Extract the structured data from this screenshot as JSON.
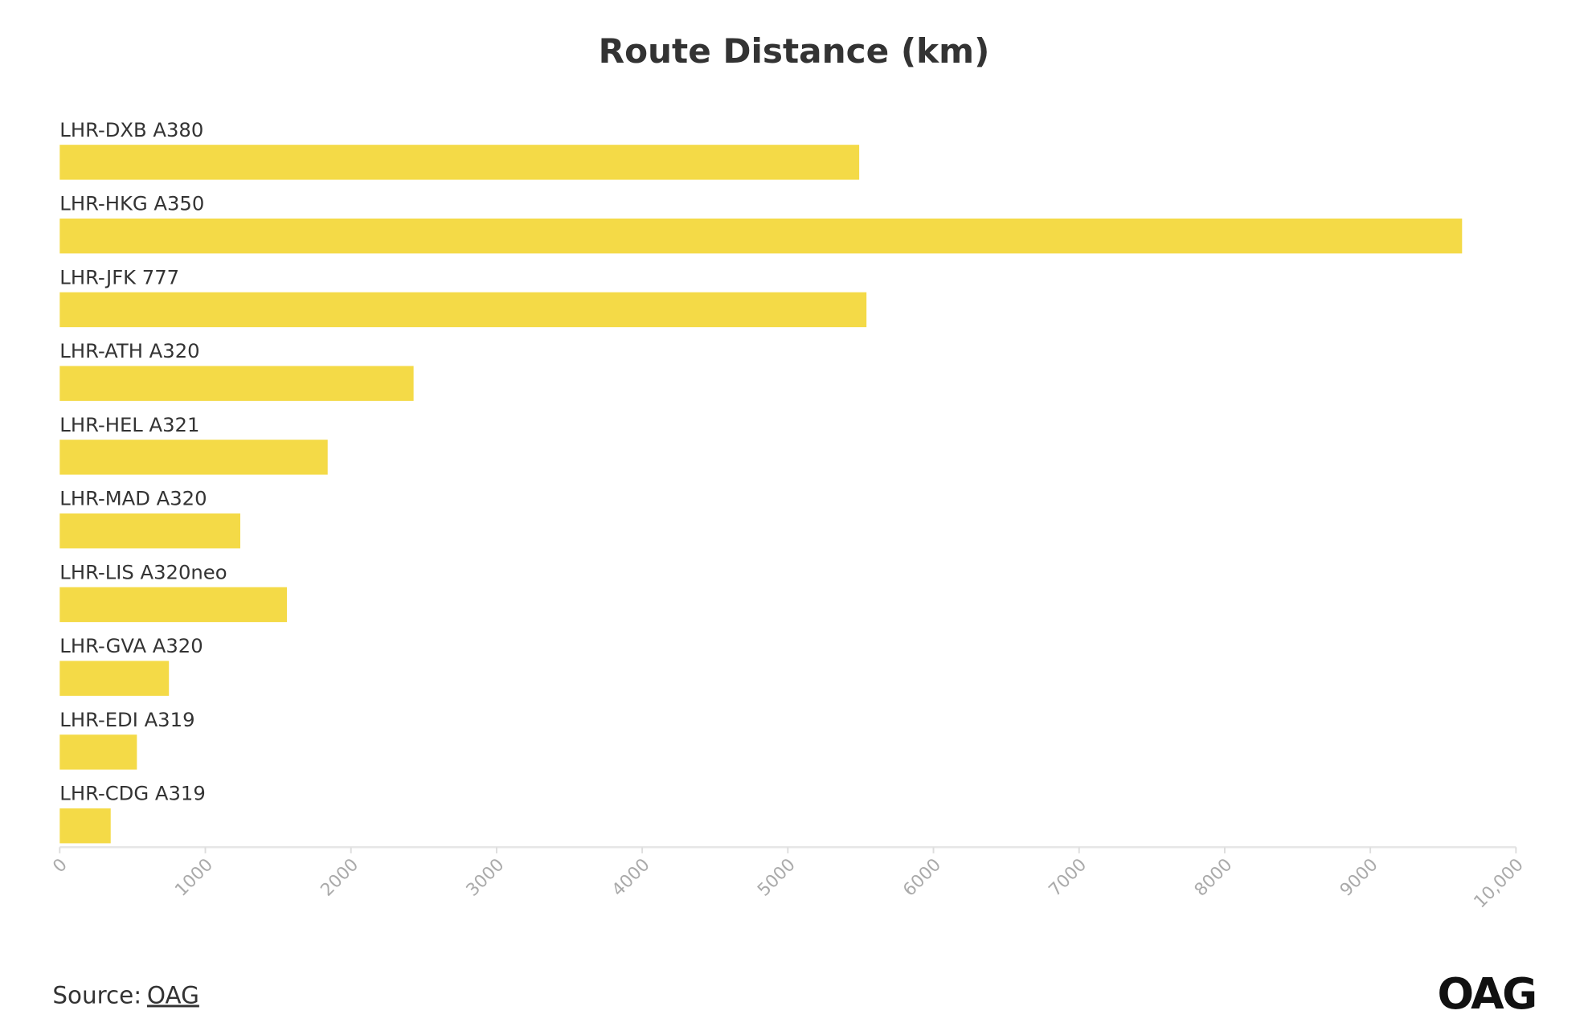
{
  "chart_data": {
    "type": "hbar",
    "title": "Route Distance (km)",
    "categories": [
      "LHR-DXB A380",
      "LHR-HKG A350",
      "LHR-JFK 777",
      "LHR-ATH A320",
      "LHR-HEL A321",
      "LHR-MAD A320",
      "LHR-LIS A320neo",
      "LHR-GVA A320",
      "LHR-EDI A319",
      "LHR-CDG A319"
    ],
    "values": [
      5490,
      9630,
      5540,
      2430,
      1840,
      1240,
      1560,
      750,
      530,
      350
    ],
    "color": "#f4da47",
    "xlim": [
      0,
      10000
    ],
    "xticks": [
      0,
      1000,
      2000,
      3000,
      4000,
      5000,
      6000,
      7000,
      8000,
      9000,
      {
        "value": 10000,
        "label": "10,000"
      }
    ],
    "source_label": "Source:",
    "source_link": "OAG",
    "logo": "OAG"
  }
}
